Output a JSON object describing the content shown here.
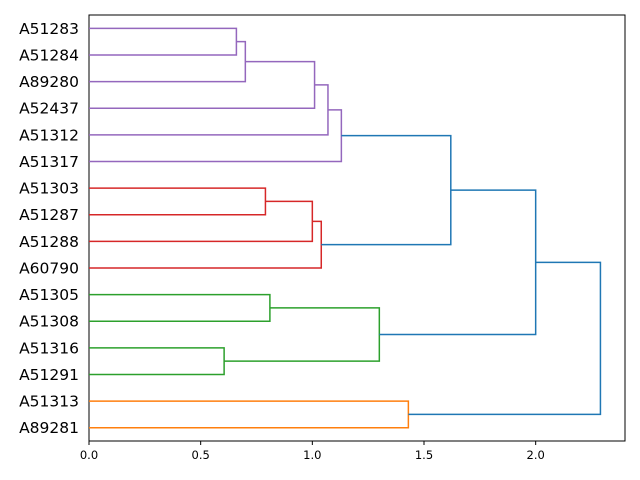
{
  "chart_data": {
    "type": "dendrogram",
    "title": "",
    "xlabel": "",
    "ylabel": "",
    "xlim": [
      0,
      2.4
    ],
    "x_ticks": [
      0.0,
      0.5,
      1.0,
      1.5,
      2.0
    ],
    "x_tick_labels": [
      "0.0",
      "0.5",
      "1.0",
      "1.5",
      "2.0"
    ],
    "grid": false,
    "leaves": [
      "A51283",
      "A51284",
      "A89280",
      "A52437",
      "A51312",
      "A51317",
      "A51303",
      "A51287",
      "A51288",
      "A60790",
      "A51305",
      "A51308",
      "A51316",
      "A51291",
      "A51313",
      "A89281"
    ],
    "links": [
      {
        "id": 16,
        "left": 0,
        "right": 1,
        "height": 0.66,
        "color": "#9467bd"
      },
      {
        "id": 17,
        "left": 16,
        "right": 2,
        "height": 0.7,
        "color": "#9467bd"
      },
      {
        "id": 18,
        "left": 17,
        "right": 3,
        "height": 1.01,
        "color": "#9467bd"
      },
      {
        "id": 19,
        "left": 18,
        "right": 4,
        "height": 1.07,
        "color": "#9467bd"
      },
      {
        "id": 20,
        "left": 19,
        "right": 5,
        "height": 1.13,
        "color": "#9467bd"
      },
      {
        "id": 21,
        "left": 6,
        "right": 7,
        "height": 0.79,
        "color": "#d62728"
      },
      {
        "id": 22,
        "left": 21,
        "right": 8,
        "height": 1.0,
        "color": "#d62728"
      },
      {
        "id": 23,
        "left": 22,
        "right": 9,
        "height": 1.04,
        "color": "#d62728"
      },
      {
        "id": 24,
        "left": 20,
        "right": 23,
        "height": 1.62,
        "color": "#1f77b4"
      },
      {
        "id": 25,
        "left": 10,
        "right": 11,
        "height": 0.81,
        "color": "#2ca02c"
      },
      {
        "id": 26,
        "left": 12,
        "right": 13,
        "height": 0.605,
        "color": "#2ca02c"
      },
      {
        "id": 27,
        "left": 25,
        "right": 26,
        "height": 1.3,
        "color": "#2ca02c"
      },
      {
        "id": 28,
        "left": 24,
        "right": 27,
        "height": 2.0,
        "color": "#1f77b4"
      },
      {
        "id": 29,
        "left": 14,
        "right": 15,
        "height": 1.43,
        "color": "#ff7f0e"
      },
      {
        "id": 30,
        "left": 28,
        "right": 29,
        "height": 2.29,
        "color": "#1f77b4"
      }
    ]
  }
}
